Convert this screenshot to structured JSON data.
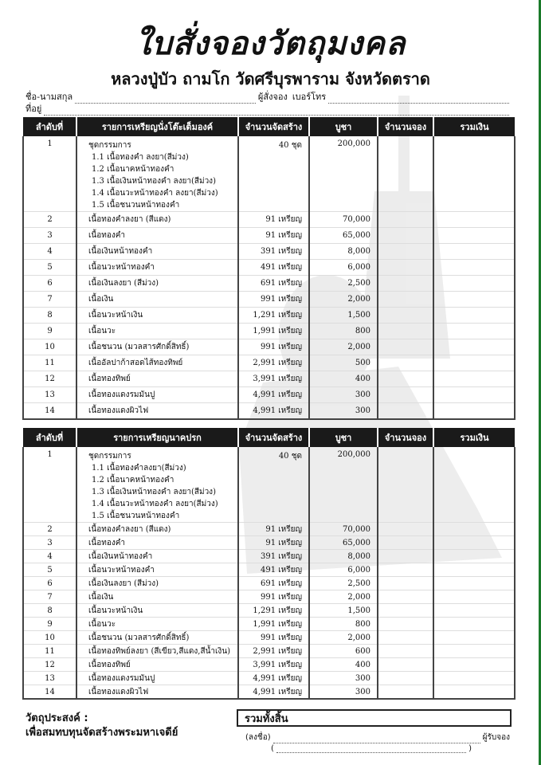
{
  "header": {
    "title": "ใบสั่งจองวัตถุมงคล",
    "subtitle": "หลวงปู่บัว ถามโก วัดศรีบุรพาราม  จังหวัดตราด",
    "name_label": "ชื่อ-นามสกุล",
    "orderer_label": "ผู้สั่งจอง",
    "phone_label": "เบอร์โทร",
    "address_label": "ที่อยู่"
  },
  "columns": [
    "ลำดับที่",
    "",
    "จำนวนจัดสร้าง",
    "บูชา",
    "จำนวนจอง",
    "รวมเงิน"
  ],
  "tables": [
    {
      "heading": "รายการเหรียญนั่งโต๊ะเต็มองค์",
      "rows": [
        {
          "seq": "1",
          "item": "ชุดกรรมการ",
          "subitems": [
            "1.1  เนื้อทองคำ ลงยา(สีม่วง)",
            "1.2  เนื้อนาคหน้าทองคำ",
            "1.3  เนื้อเงินหน้าทองคำ ลงยา(สีม่วง)",
            "1.4  เนื้อนวะหน้าทองคำ ลงยา(สีม่วง)",
            "1.5  เนื้อชนวนหน้าทองคำ"
          ],
          "qty": "40  ชุด",
          "price": "200,000"
        },
        {
          "seq": "2",
          "item": "เนื้อทองคำลงยา (สีแดง)",
          "qty": "91 เหรียญ",
          "price": "70,000"
        },
        {
          "seq": "3",
          "item": "เนื้อทองคำ",
          "qty": "91 เหรียญ",
          "price": "65,000"
        },
        {
          "seq": "4",
          "item": "เนื้อเงินหน้าทองคำ",
          "qty": "391 เหรียญ",
          "price": "8,000"
        },
        {
          "seq": "5",
          "item": "เนื้อนวะหน้าทองคำ",
          "qty": "491 เหรียญ",
          "price": "6,000"
        },
        {
          "seq": "6",
          "item": "เนื้อเงินลงยา  (สีม่วง)",
          "qty": "691 เหรียญ",
          "price": "2,500"
        },
        {
          "seq": "7",
          "item": "เนื้อเงิน",
          "qty": "991 เหรียญ",
          "price": "2,000"
        },
        {
          "seq": "8",
          "item": "เนื้อนวะหน้าเงิน",
          "qty": "1,291 เหรียญ",
          "price": "1,500"
        },
        {
          "seq": "9",
          "item": "เนื้อนวะ",
          "qty": "1,991 เหรียญ",
          "price": "800"
        },
        {
          "seq": "10",
          "item": "เนื้อชนวน (มวลสารศักดิ์สิทธิ์)",
          "qty": "991 เหรียญ",
          "price": "2,000"
        },
        {
          "seq": "11",
          "item": "เนื้ออัลปาก้าสอดไส้ทองทิพย์",
          "qty": "2,991 เหรียญ",
          "price": "500"
        },
        {
          "seq": "12",
          "item": "เนื้อทองทิพย์",
          "qty": "3,991 เหรียญ",
          "price": "400"
        },
        {
          "seq": "13",
          "item": "เนื้อทองแดงรมมันปู",
          "qty": "4,991 เหรียญ",
          "price": "300"
        },
        {
          "seq": "14",
          "item": "เนื้อทองแดงผิวไฟ",
          "qty": "4,991 เหรียญ",
          "price": "300"
        }
      ]
    },
    {
      "heading": "รายการเหรียญนาคปรก",
      "rows": [
        {
          "seq": "1",
          "item": "ชุดกรรมการ",
          "subitems": [
            "1.1  เนื้อทองคำลงยา(สีม่วง)",
            "1.2  เนื้อนาคหน้าทองคำ",
            "1.3  เนื้อเงินหน้าทองคำ ลงยา(สีม่วง)",
            "1.4  เนื้อนวะหน้าทองคำ ลงยา(สีม่วง)",
            "1.5  เนื้อชนวนหน้าทองคำ"
          ],
          "qty": "40  ชุด",
          "price": "200,000"
        },
        {
          "seq": "2",
          "item": "เนื้อทองคำลงยา (สีแดง)",
          "qty": "91 เหรียญ",
          "price": "70,000"
        },
        {
          "seq": "3",
          "item": "เนื้อทองคำ",
          "qty": "91 เหรียญ",
          "price": "65,000"
        },
        {
          "seq": "4",
          "item": "เนื้อเงินหน้าทองคำ",
          "qty": "391 เหรียญ",
          "price": "8,000"
        },
        {
          "seq": "5",
          "item": "เนื้อนวะหน้าทองคำ",
          "qty": "491 เหรียญ",
          "price": "6,000"
        },
        {
          "seq": "6",
          "item": "เนื้อเงินลงยา  (สีม่วง)",
          "qty": "691 เหรียญ",
          "price": "2,500"
        },
        {
          "seq": "7",
          "item": "เนื้อเงิน",
          "qty": "991 เหรียญ",
          "price": "2,000"
        },
        {
          "seq": "8",
          "item": "เนื้อนวะหน้าเงิน",
          "qty": "1,291 เหรียญ",
          "price": "1,500"
        },
        {
          "seq": "9",
          "item": "เนื้อนวะ",
          "qty": "1,991 เหรียญ",
          "price": "800"
        },
        {
          "seq": "10",
          "item": "เนื้อชนวน (มวลสารศักดิ์สิทธิ์)",
          "qty": "991 เหรียญ",
          "price": "2,000"
        },
        {
          "seq": "11",
          "item": "เนื้อทองทิพย์ลงยา (สีเขียว,สีแดง,สีน้ำเงิน)",
          "qty": "2,991 เหรียญ",
          "price": "600"
        },
        {
          "seq": "12",
          "item": "เนื้อทองทิพย์",
          "qty": "3,991 เหรียญ",
          "price": "400"
        },
        {
          "seq": "13",
          "item": "เนื้อทองแดงรมมันปู",
          "qty": "4,991 เหรียญ",
          "price": "300"
        },
        {
          "seq": "14",
          "item": "เนื้อทองแดงผิวไฟ",
          "qty": "4,991 เหรียญ",
          "price": "300"
        }
      ]
    }
  ],
  "footer": {
    "purpose_label": "วัตถุประสงค์ :",
    "purpose_text": "เพื่อสมทบทุนจัดสร้างพระมหาเจดีย์",
    "grand_total_label": "รวมทั้งสิ้น",
    "sign_label": "(ลงชื่อ)",
    "receiver_label": "ผู้รับจอง",
    "paren_open": "(",
    "paren_close": ")"
  },
  "colors": {
    "header_bg": "#1a1a1a",
    "edge": "#1a7a2a"
  }
}
